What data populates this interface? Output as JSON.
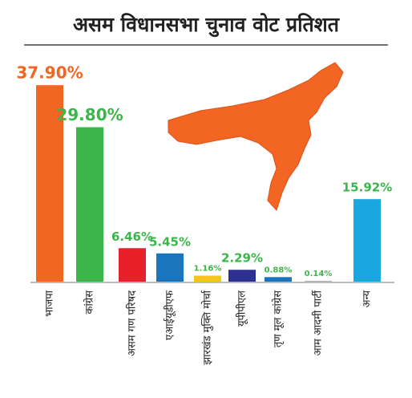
{
  "chart_data": {
    "type": "bar",
    "title": "असम विधानसभा चुनाव वोट प्रतिशत",
    "categories": [
      "भाजपा",
      "कांग्रेस",
      "असम गण परिषद",
      "एआईयूडीएफ",
      "झारखंड मुक्ति मोर्चा",
      "यूपीपीएल",
      "तृण मूल कांग्रेस",
      "आम आदमी पार्टी",
      "अन्य"
    ],
    "values": [
      37.9,
      29.8,
      6.46,
      5.45,
      1.16,
      2.29,
      0.88,
      0.14,
      15.92
    ],
    "value_labels": [
      "37.90%",
      "29.80%",
      "6.46%",
      "5.45%",
      "1.16%",
      "2.29%",
      "0.88%",
      "0.14%",
      "15.92%"
    ],
    "colors": [
      "#f26522",
      "#3cb54a",
      "#e8202a",
      "#1a75bc",
      "#f5c518",
      "#2e3192",
      "#1a75bc",
      "#a8a8a8",
      "#1aa7e0"
    ],
    "label_colors": [
      "#f26522",
      "#3cb54a",
      "#3cb54a",
      "#3cb54a",
      "#3cb54a",
      "#3cb54a",
      "#3cb54a",
      "#3cb54a",
      "#3cb54a"
    ]
  }
}
